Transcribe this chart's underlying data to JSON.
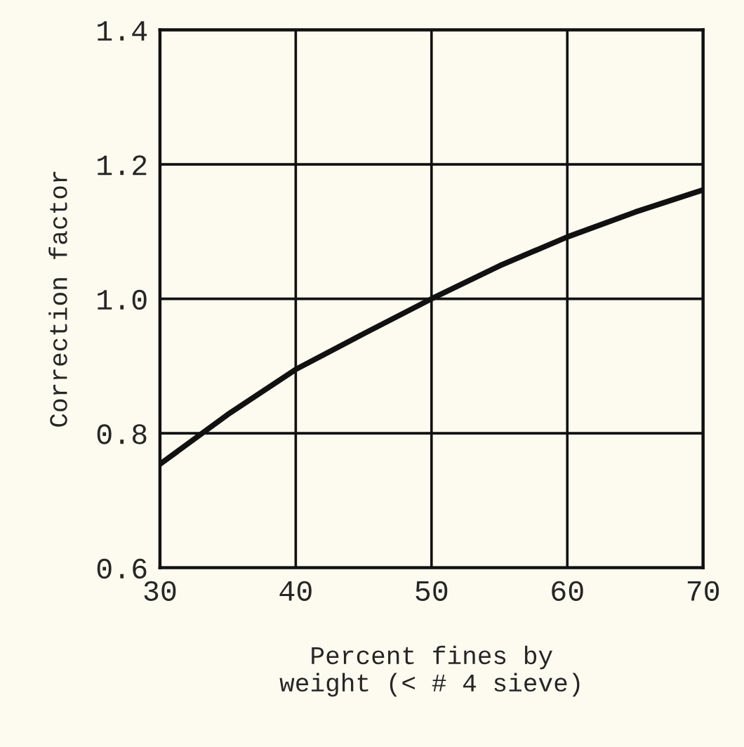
{
  "chart_data": {
    "type": "line",
    "xlabel": "Percent fines by\nweight (< # 4 sieve)",
    "ylabel": "Correction factor",
    "x": [
      30,
      35,
      40,
      45,
      50,
      55,
      60,
      65,
      70
    ],
    "series": [
      {
        "color": "#111111",
        "values": [
          0.754,
          0.828,
          0.895,
          0.948,
          1.0,
          1.049,
          1.092,
          1.129,
          1.162
        ]
      }
    ],
    "xlim": [
      30,
      70
    ],
    "ylim": [
      0.6,
      1.4
    ],
    "xticks": [
      30,
      40,
      50,
      60,
      70
    ],
    "yticks": [
      0.6,
      0.8,
      {
        "value": 1.0,
        "label": "1.0"
      },
      1.2,
      1.4
    ],
    "grid": true
  }
}
